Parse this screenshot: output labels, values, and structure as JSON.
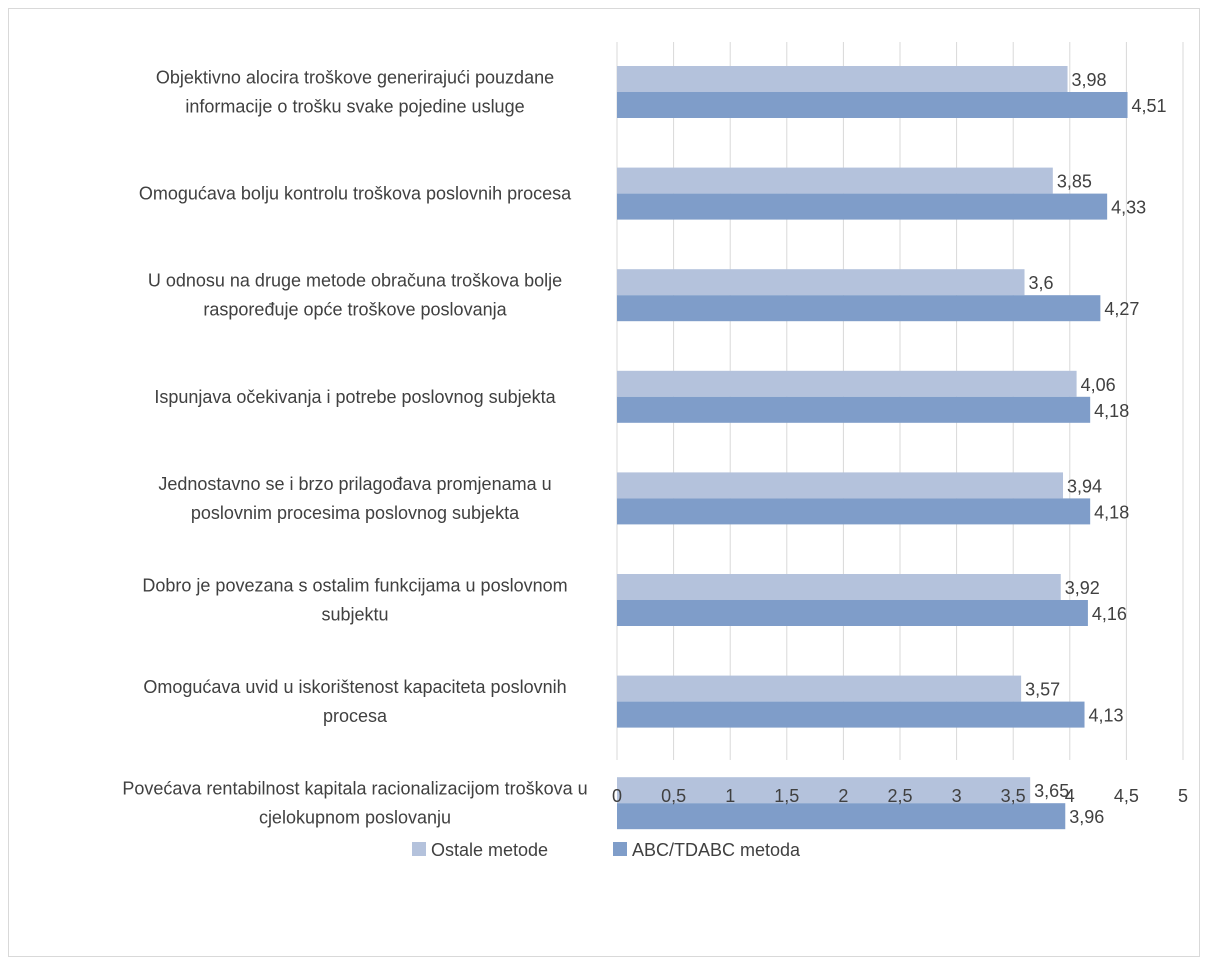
{
  "chart_data": {
    "type": "bar",
    "orientation": "horizontal",
    "categories": [
      [
        "Objektivno alocira troškove generirajući pouzdane",
        "informacije o trošku svake pojedine usluge"
      ],
      [
        "Omogućava bolju kontrolu troškova poslovnih procesa"
      ],
      [
        "U odnosu na druge metode obračuna troškova bolje",
        "raspoređuje opće troškove poslovanja"
      ],
      [
        "Ispunjava očekivanja i potrebe poslovnog subjekta"
      ],
      [
        "Jednostavno se i brzo prilagođava promjenama u",
        "poslovnim procesima poslovnog subjekta"
      ],
      [
        "Dobro je povezana s ostalim funkcijama u poslovnom",
        "subjektu"
      ],
      [
        "Omogućava uvid u iskorištenost kapaciteta poslovnih",
        "procesa"
      ],
      [
        "Povećava rentabilnost kapitala racionalizacijom troškova u",
        "cjelokupnom poslovanju"
      ]
    ],
    "series": [
      {
        "name": "Ostale metode",
        "color": "#b4c2dc",
        "values": [
          3.98,
          3.85,
          3.6,
          4.06,
          3.94,
          3.92,
          3.57,
          3.65
        ],
        "labels": [
          "3,98",
          "3,85",
          "3,6",
          "4,06",
          "3,94",
          "3,92",
          "3,57",
          "3,65"
        ]
      },
      {
        "name": "ABC/TDABC metoda",
        "color": "#7f9dc9",
        "values": [
          4.51,
          4.33,
          4.27,
          4.18,
          4.18,
          4.16,
          4.13,
          3.96
        ],
        "labels": [
          "4,51",
          "4,33",
          "4,27",
          "4,18",
          "4,18",
          "4,16",
          "4,13",
          "3,96"
        ]
      }
    ],
    "xlim": [
      0,
      5
    ],
    "xticks": [
      0,
      0.5,
      1,
      1.5,
      2,
      2.5,
      3,
      3.5,
      4,
      4.5,
      5
    ],
    "xtick_labels": [
      "0",
      "0,5",
      "1",
      "1,5",
      "2",
      "2,5",
      "3",
      "3,5",
      "4",
      "4,5",
      "5"
    ],
    "grid": true,
    "gridline_color": "#d9d9d9",
    "legend_position": "bottom"
  }
}
